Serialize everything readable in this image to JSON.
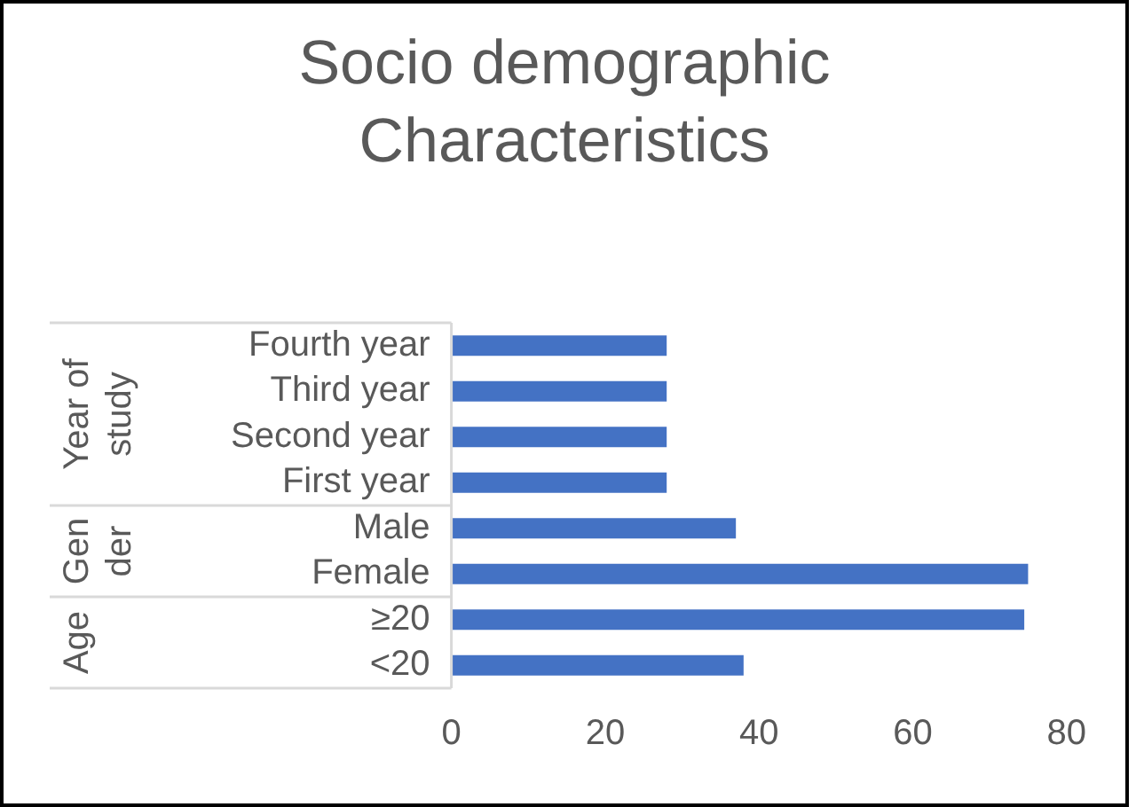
{
  "chart_data": {
    "type": "bar",
    "orientation": "horizontal",
    "title": "Socio demographic Characteristics",
    "categories": [
      "Fourth year",
      "Third year",
      "Second year",
      "First year",
      "Male",
      "Female",
      "≥20",
      "<20"
    ],
    "values": [
      28,
      28,
      28,
      28,
      37,
      75,
      74.5,
      38
    ],
    "color": "#4472c4",
    "xlim": [
      0,
      80
    ],
    "xticks": [
      0,
      20,
      40,
      60,
      80
    ],
    "grid": false,
    "annotations": [
      "Year of study",
      "Gender",
      "Age"
    ]
  }
}
